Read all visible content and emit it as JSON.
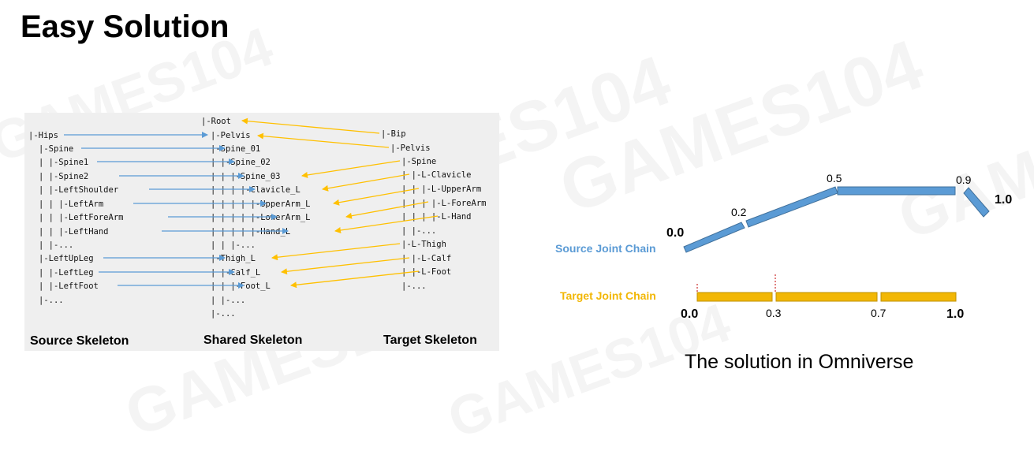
{
  "page": {
    "title": "Easy Solution",
    "watermark": "GAMES104",
    "caption": "The solution in Omniverse"
  },
  "colors": {
    "source_arrow": "#5b9bd5",
    "target_arrow": "#ffc000",
    "panel_bg": "#efefef",
    "source_chain": "#5b9bd5",
    "target_chain": "#f2b705"
  },
  "skeleton_panel": {
    "source_title": "Source Skeleton",
    "shared_title": "Shared Skeleton",
    "target_title": "Target Skeleton",
    "source_lines": [
      "|-Hips",
      "  |-Spine",
      "  | |-Spine1",
      "  |   |-Spine2",
      "  |     |-LeftShoulder",
      "  |     | |-LeftArm",
      "  |     |   |-LeftForeArm",
      "  |     |     |-LeftHand",
      "  |     |-...",
      "  |-LeftUpLeg",
      "  | |-LeftLeg",
      "  |   |-LeftFoot",
      "  |-..."
    ],
    "shared_lines": [
      "|-Root",
      "  |-Pelvis",
      "    |-Spine_01",
      "    | |-Spine_02",
      "    | | |-Spine_03",
      "    | | | |-Clavicle_L",
      "    | | | | |-UpperArm_L",
      "    | | | |   |-LowerArm_L",
      "    | | | |     |-Hand_L",
      "    | |   |-...",
      "    |-Thigh_L",
      "    | |-Calf_L",
      "    | | |-Foot_L",
      "    | |-...",
      "    |-..."
    ],
    "target_lines": [
      "|-Bip",
      "  |-Pelvis",
      "    |-Spine",
      "    | |-L-Clavicle",
      "    | | |-L-UpperArm",
      "    | | | |-L-ForeArm",
      "    | | |   |-L-Hand",
      "    | |-...",
      "    |-L-Thigh",
      "    | |-L-Calf",
      "    |   |-L-Foot",
      "    |-..."
    ]
  },
  "joint_chain": {
    "source_label": "Source Joint Chain",
    "target_label": "Target Joint Chain",
    "source_values": [
      "0.0",
      "0.2",
      "0.5",
      "0.9",
      "1.0"
    ],
    "target_values": [
      "0.0",
      "0.3",
      "0.7",
      "1.0"
    ]
  }
}
